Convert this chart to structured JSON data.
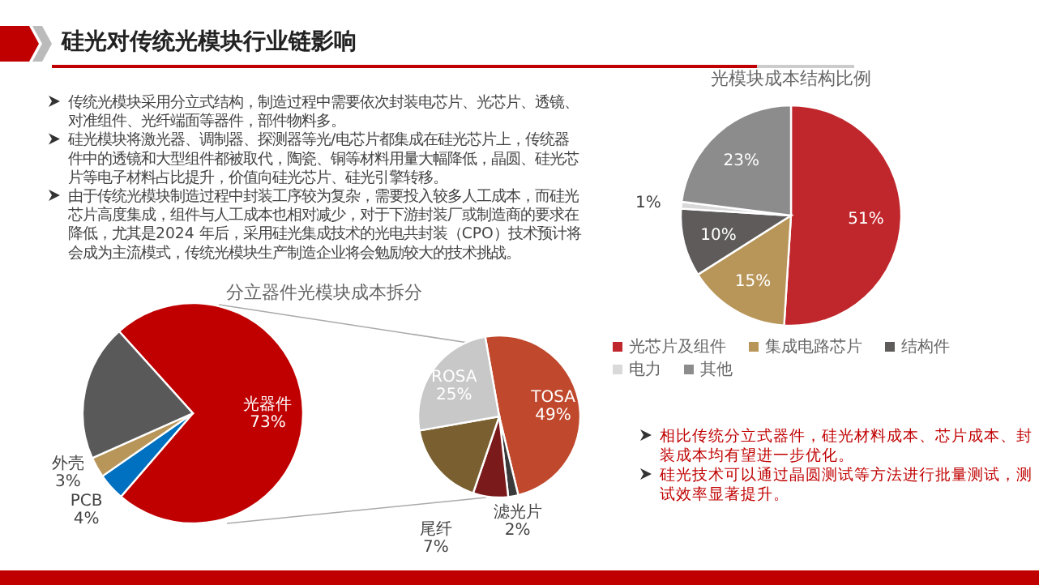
{
  "chart_data": [
    {
      "type": "other",
      "title": "硅光对传统光模块行业链影响",
      "annotations": [
        "传统光模块采用分立式结构，制造过程中需要依次封装电芯片、光芯片、透镜、对准组件、光纤端面等器件，部件物料多。",
        "硅光模块将激光器、调制器、探测器等光/电芯片都集成在硅光芯片上，传统器件中的透镜和大型组件都被取代，陶瓷、铜等材料用量大幅降低，晶圆、硅光芯片等电子材料占比提升，价值向硅光芯片、硅光引擎转移。",
        "由于传统光模块制造过程中封装工序较为复杂，需要投入较多人工成本，而硅光芯片高度集成，组件与人工成本也相对减少，对于下游封装厂或制造商的要求在降低，尤其是2024 年后，采用硅光集成技术的光电共封装（CPO）技术预计将会成为主流模式，传统光模块生产制造企业将会勉励较大的技术挑战。"
      ]
    },
    {
      "type": "pie",
      "title": "光模块成本结构比例",
      "legend": "bottom",
      "categories": [
        "光芯片及组件",
        "集成电路芯片",
        "结构件",
        "电力",
        "其他"
      ],
      "values": [
        51,
        15,
        10,
        1,
        23
      ],
      "colors": [
        "#c0272d",
        "#b8965a",
        "#5f5b5b",
        "#d9d9d9",
        "#8c8c8c"
      ],
      "value_labels": [
        "51%",
        "15%",
        "10%",
        "1%",
        "23%"
      ]
    },
    {
      "type": "pie",
      "title": "分立器件光模块成本拆分",
      "categories": [
        "光器件",
        "PCB",
        "外壳",
        null
      ],
      "values": [
        73,
        4,
        3,
        20
      ],
      "colors": [
        "#c00000",
        "#0070c0",
        "#b8965a",
        "#595959"
      ],
      "value_labels": [
        "73%",
        "4%",
        "3%",
        null
      ]
    },
    {
      "type": "pie",
      "categories": [
        "TOSA",
        "滤光片",
        "尾纤",
        null,
        "ROSA"
      ],
      "values": [
        49,
        2,
        7,
        17,
        25
      ],
      "colors": [
        "#c0482c",
        "#3a3a3a",
        "#7b1a1a",
        "#7a6030",
        "#c8c8c8"
      ],
      "value_labels": [
        "49%",
        "2%",
        "7%",
        null,
        "25%"
      ]
    },
    {
      "type": "other",
      "annotations": [
        "相比传统分立式器件，硅光材料成本、芯片成本、封装成本均有望进一步优化。",
        "硅光技术可以通过晶圆测试等方法进行批量测试，测试效率显著提升。"
      ]
    }
  ]
}
